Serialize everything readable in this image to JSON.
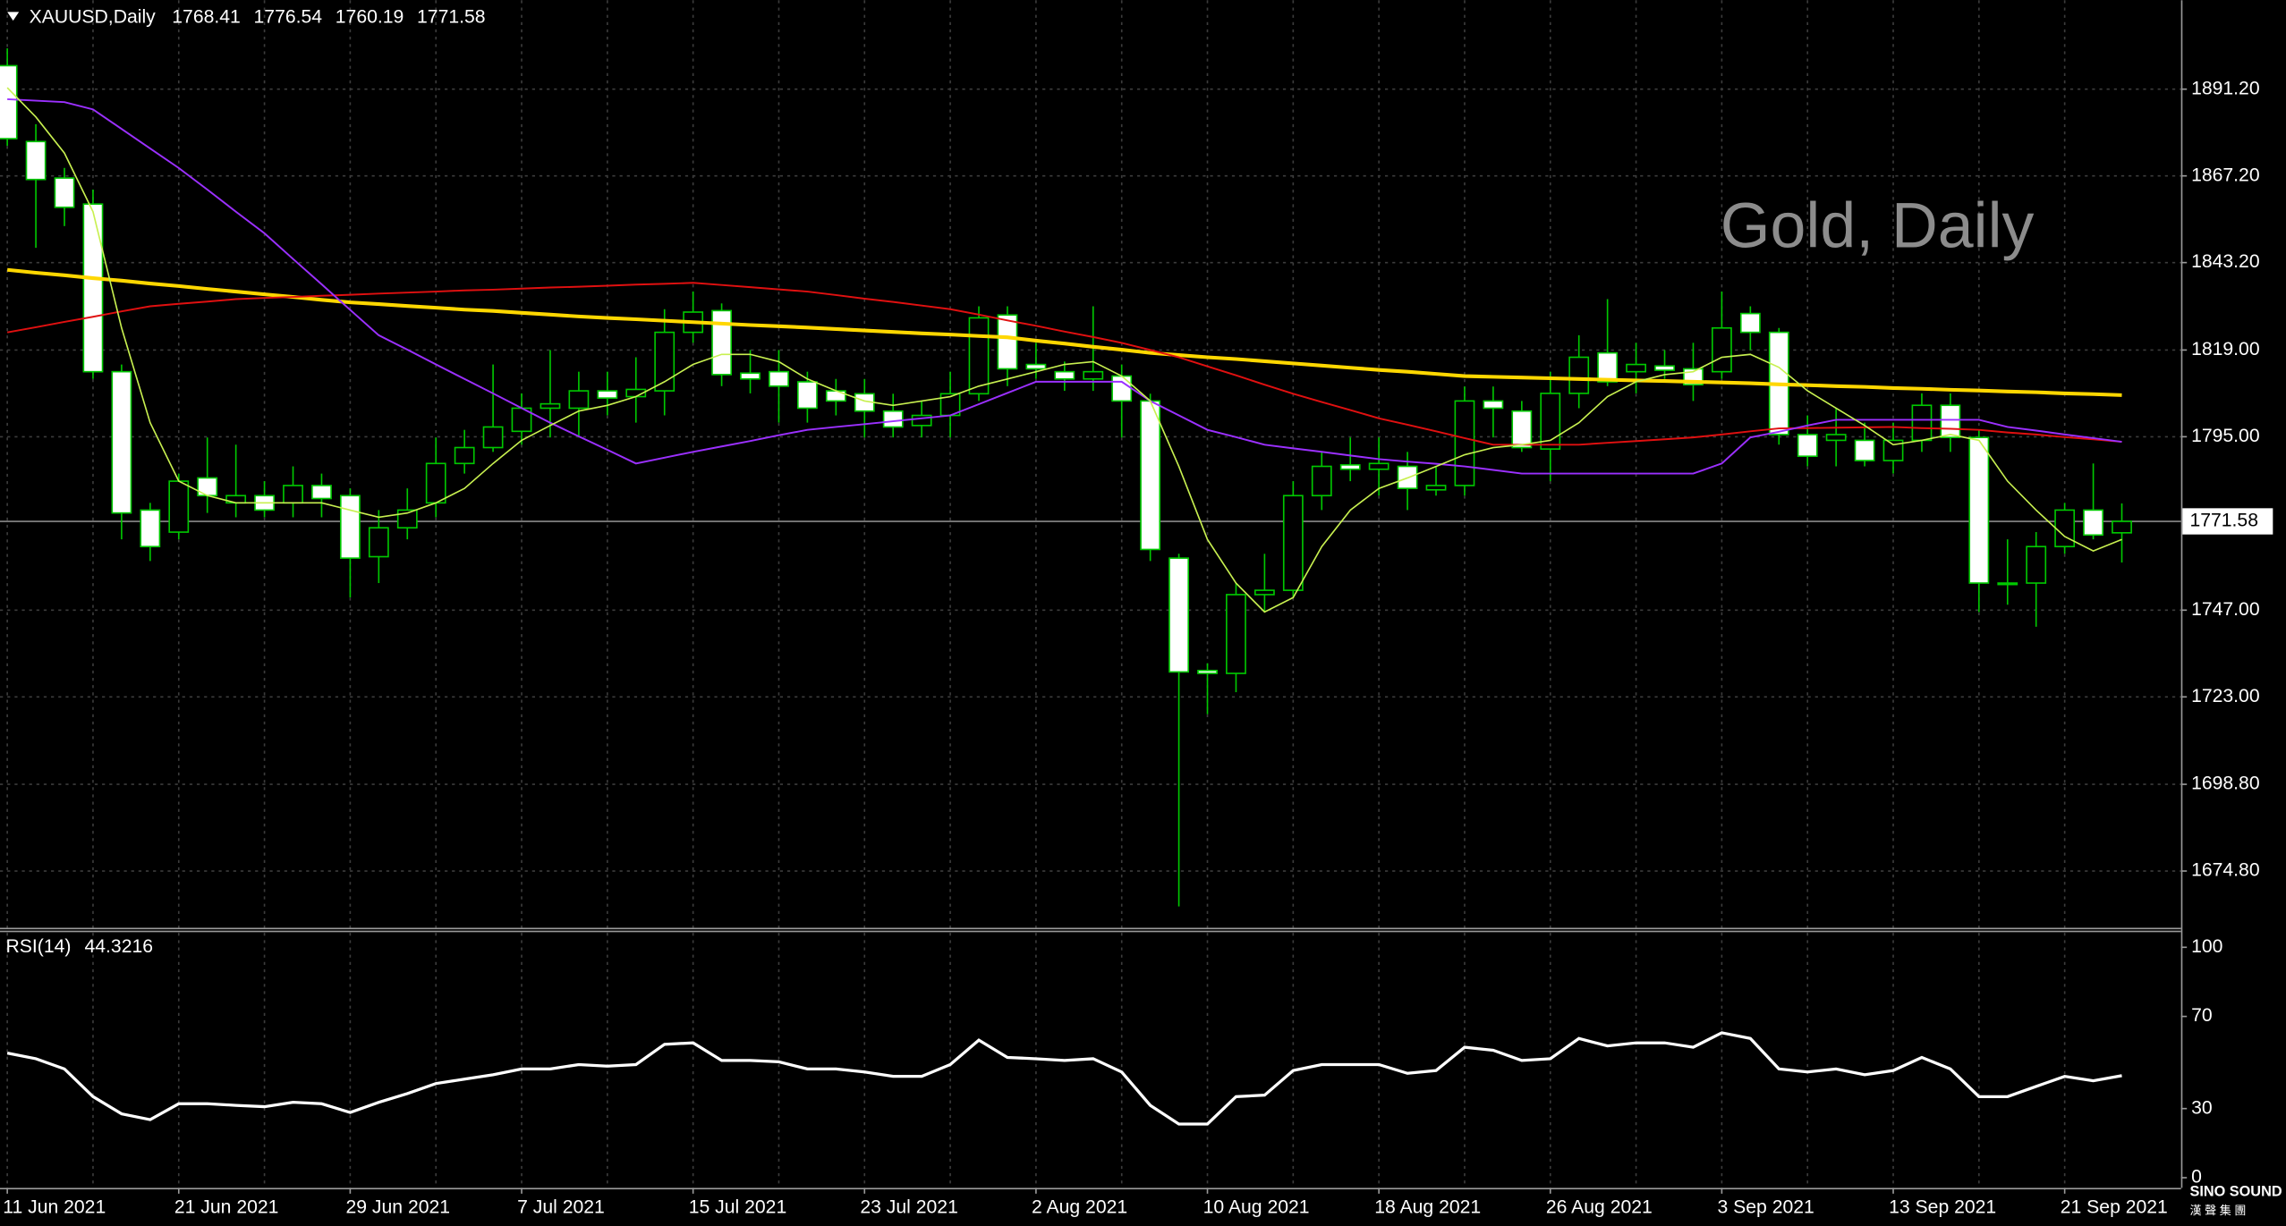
{
  "chart_data": [
    {
      "type": "candlestick",
      "title": "XAUUSD,Daily",
      "annotation": "Gold, Daily",
      "x": [
        "11 Jun 2021",
        null,
        null,
        null,
        null,
        null,
        "21 Jun 2021",
        null,
        null,
        null,
        null,
        null,
        "29 Jun 2021",
        null,
        null,
        null,
        null,
        null,
        "7 Jul 2021",
        null,
        null,
        null,
        null,
        null,
        "15 Jul 2021",
        null,
        null,
        null,
        null,
        null,
        "23 Jul 2021",
        null,
        null,
        null,
        null,
        null,
        "2 Aug 2021",
        null,
        null,
        null,
        null,
        null,
        "10 Aug 2021",
        null,
        null,
        null,
        null,
        null,
        "18 Aug 2021",
        null,
        null,
        null,
        null,
        null,
        "26 Aug 2021",
        null,
        null,
        null,
        null,
        null,
        "3 Sep 2021",
        null,
        null,
        null,
        null,
        null,
        "13 Sep 2021",
        null,
        null,
        null,
        null,
        null,
        "21 Sep 2021",
        null,
        null
      ],
      "open": [
        1897.7,
        1876.7,
        1866.6,
        1859.4,
        1813.0,
        1774.7,
        1768.6,
        1783.6,
        1776.7,
        1778.7,
        1776.7,
        1781.5,
        1778.7,
        1761.8,
        1769.8,
        1776.7,
        1787.6,
        1792.0,
        1796.5,
        1802.9,
        1802.9,
        1807.7,
        1806.1,
        1807.7,
        1823.9,
        1829.9,
        1812.6,
        1813.0,
        1810.2,
        1807.7,
        1806.9,
        1802.1,
        1798.1,
        1800.9,
        1806.9,
        1828.7,
        1815.0,
        1813.0,
        1811.0,
        1811.8,
        1804.9,
        1761.4,
        1730.3,
        1729.5,
        1751.3,
        1752.5,
        1778.7,
        1787.2,
        1786.0,
        1786.8,
        1780.3,
        1781.5,
        1804.9,
        1802.1,
        1791.6,
        1807.0,
        1818.2,
        1813.0,
        1814.6,
        1813.8,
        1813.0,
        1829.1,
        1823.9,
        1795.6,
        1794.0,
        1794.0,
        1788.4,
        1794.0,
        1803.7,
        1794.8,
        1754.1,
        1754.5,
        1764.6,
        1774.7,
        1768.41
      ],
      "high": [
        1902.5,
        1881.5,
        1869.4,
        1863.4,
        1815.0,
        1776.7,
        1784.8,
        1794.8,
        1792.8,
        1782.7,
        1786.8,
        1784.8,
        1780.7,
        1774.7,
        1780.7,
        1794.8,
        1796.9,
        1815.0,
        1807.0,
        1819.0,
        1813.0,
        1813.0,
        1817.0,
        1830.3,
        1835.2,
        1831.9,
        1819.0,
        1819.0,
        1813.0,
        1811.0,
        1811.0,
        1806.9,
        1804.9,
        1813.0,
        1831.1,
        1831.1,
        1821.0,
        1815.8,
        1831.1,
        1815.0,
        1806.9,
        1762.6,
        1732.3,
        1754.5,
        1762.6,
        1782.7,
        1790.8,
        1794.8,
        1794.8,
        1790.8,
        1786.8,
        1808.9,
        1808.9,
        1804.9,
        1813.0,
        1823.1,
        1833.1,
        1821.0,
        1819.0,
        1821.0,
        1835.2,
        1831.1,
        1825.1,
        1800.9,
        1802.9,
        1798.9,
        1798.9,
        1807.0,
        1807.0,
        1796.9,
        1766.6,
        1768.6,
        1776.7,
        1787.6,
        1776.54
      ],
      "low": [
        1875.5,
        1847.3,
        1853.3,
        1811.0,
        1766.6,
        1760.6,
        1766.6,
        1773.9,
        1772.7,
        1772.7,
        1772.7,
        1772.7,
        1750.5,
        1754.5,
        1766.6,
        1772.7,
        1784.8,
        1790.8,
        1792.8,
        1794.8,
        1794.8,
        1800.9,
        1798.9,
        1800.9,
        1821.0,
        1809.0,
        1807.0,
        1798.9,
        1798.9,
        1800.9,
        1794.8,
        1794.8,
        1794.8,
        1794.8,
        1804.9,
        1809.0,
        1811.0,
        1807.7,
        1807.7,
        1794.8,
        1760.6,
        1665.0,
        1718.2,
        1724.3,
        1746.5,
        1750.5,
        1774.7,
        1782.7,
        1778.7,
        1774.7,
        1778.7,
        1778.7,
        1794.8,
        1790.8,
        1782.7,
        1802.9,
        1809.0,
        1807.0,
        1811.0,
        1804.9,
        1811.0,
        1819.0,
        1792.8,
        1786.8,
        1786.8,
        1786.8,
        1784.8,
        1790.8,
        1790.8,
        1746.5,
        1748.5,
        1742.4,
        1762.6,
        1766.6,
        1760.19
      ],
      "close": [
        1877.5,
        1866.2,
        1858.5,
        1813.0,
        1773.9,
        1764.6,
        1782.7,
        1778.7,
        1778.7,
        1774.7,
        1781.5,
        1777.9,
        1761.4,
        1769.8,
        1774.7,
        1787.6,
        1792.0,
        1797.7,
        1802.9,
        1804.1,
        1807.7,
        1805.7,
        1808.1,
        1823.9,
        1829.5,
        1812.2,
        1811.0,
        1809.0,
        1802.9,
        1804.9,
        1802.1,
        1797.7,
        1800.9,
        1806.9,
        1827.9,
        1813.8,
        1813.8,
        1811.0,
        1813.0,
        1804.9,
        1763.8,
        1729.9,
        1729.5,
        1751.3,
        1752.5,
        1778.7,
        1786.8,
        1786.0,
        1787.6,
        1780.7,
        1781.5,
        1804.9,
        1802.9,
        1792.0,
        1807.0,
        1817.0,
        1810.2,
        1815.0,
        1813.4,
        1809.4,
        1825.1,
        1823.9,
        1795.6,
        1789.6,
        1795.6,
        1788.4,
        1794.0,
        1803.7,
        1794.8,
        1754.5,
        1754.5,
        1764.6,
        1774.7,
        1767.8,
        1771.58
      ],
      "bull_color": "#000000",
      "bear_color": "#ffffff",
      "wick_color": "#00c800",
      "series": [
        {
          "color": "#ffd700",
          "width": 2.5,
          "values": [
            1841.2,
            1840.4,
            1839.7,
            1838.9,
            1838.2,
            1837.4,
            1836.7,
            1835.9,
            1835.2,
            1834.4,
            1833.7,
            1832.9,
            1832.2,
            1831.7,
            1831.2,
            1830.7,
            1830.2,
            1829.8,
            1829.3,
            1828.8,
            1828.3,
            1827.9,
            1827.5,
            1827.1,
            1826.7,
            1826.3,
            1825.9,
            1825.6,
            1825.2,
            1824.8,
            1824.4,
            1824.0,
            1823.6,
            1823.3,
            1822.9,
            1822.5,
            1821.6,
            1820.8,
            1819.9,
            1819.1,
            1818.2,
            1817.6,
            1817.0,
            1816.5,
            1815.9,
            1815.3,
            1814.7,
            1814.1,
            1813.5,
            1813.0,
            1812.4,
            1811.8,
            1811.6,
            1811.4,
            1811.2,
            1811.0,
            1810.8,
            1810.6,
            1810.4,
            1810.2,
            1810.0,
            1809.8,
            1809.5,
            1809.3,
            1809.0,
            1808.8,
            1808.5,
            1808.3,
            1808.0,
            1807.8,
            1807.5,
            1807.3,
            1807.0,
            1806.8,
            1806.5
          ]
        },
        {
          "color": "#e01010",
          "width": 1.2,
          "values": [
            1823.9,
            1825.3,
            1826.8,
            1828.2,
            1829.7,
            1831.1,
            1831.8,
            1832.4,
            1833.1,
            1833.4,
            1833.7,
            1834.0,
            1834.3,
            1834.6,
            1834.9,
            1835.2,
            1835.5,
            1835.7,
            1836.0,
            1836.3,
            1836.5,
            1836.8,
            1837.1,
            1837.3,
            1837.6,
            1837.0,
            1836.4,
            1835.8,
            1835.2,
            1834.2,
            1833.2,
            1832.3,
            1831.3,
            1830.3,
            1828.8,
            1827.2,
            1825.7,
            1824.1,
            1822.6,
            1821.0,
            1819.0,
            1817.0,
            1814.5,
            1812.0,
            1809.4,
            1806.9,
            1804.6,
            1802.4,
            1800.1,
            1798.3,
            1796.5,
            1794.6,
            1792.8,
            1792.8,
            1792.8,
            1792.8,
            1793.3,
            1793.8,
            1794.3,
            1794.8,
            1795.6,
            1796.5,
            1797.3,
            1797.4,
            1797.5,
            1797.6,
            1797.7,
            1797.4,
            1797.2,
            1796.9,
            1796.2,
            1795.6,
            1794.9,
            1794.3,
            1793.6
          ]
        },
        {
          "color": "#9b30ff",
          "width": 1.2,
          "values": [
            1888.4,
            1888.0,
            1887.6,
            1885.6,
            1880.2,
            1874.8,
            1869.4,
            1863.4,
            1857.3,
            1851.3,
            1844.2,
            1837.2,
            1830.1,
            1823.1,
            1819.1,
            1815.0,
            1811.0,
            1807.0,
            1802.9,
            1798.9,
            1795.1,
            1791.4,
            1787.6,
            1789.2,
            1790.8,
            1792.3,
            1793.8,
            1795.4,
            1796.9,
            1797.7,
            1798.5,
            1799.3,
            1800.1,
            1800.9,
            1804.0,
            1807.1,
            1810.2,
            1810.2,
            1810.2,
            1810.2,
            1804.9,
            1800.9,
            1796.9,
            1794.9,
            1792.8,
            1791.8,
            1790.8,
            1789.8,
            1788.8,
            1788.1,
            1787.5,
            1786.8,
            1785.8,
            1784.8,
            1784.8,
            1784.8,
            1784.8,
            1784.8,
            1784.8,
            1784.8,
            1787.6,
            1794.8,
            1796.4,
            1798.1,
            1799.7,
            1799.7,
            1799.7,
            1799.7,
            1799.7,
            1799.7,
            1797.7,
            1796.7,
            1795.6,
            1794.6,
            1793.6
          ]
        },
        {
          "color": "#c8f050",
          "width": 1,
          "values": [
            1891.6,
            1883.5,
            1873.5,
            1857.3,
            1825.1,
            1798.9,
            1782.7,
            1778.7,
            1776.7,
            1776.7,
            1776.7,
            1776.7,
            1774.7,
            1772.7,
            1773.9,
            1776.7,
            1780.7,
            1787.6,
            1794.0,
            1798.1,
            1802.1,
            1803.7,
            1806.1,
            1810.2,
            1815.0,
            1817.8,
            1817.8,
            1815.8,
            1811.0,
            1807.7,
            1804.9,
            1803.7,
            1804.9,
            1806.1,
            1809.0,
            1811.0,
            1813.0,
            1815.0,
            1815.8,
            1811.8,
            1804.9,
            1786.8,
            1766.6,
            1754.5,
            1746.5,
            1750.5,
            1764.6,
            1774.7,
            1780.7,
            1783.6,
            1786.8,
            1790.0,
            1792.0,
            1792.8,
            1794.0,
            1798.9,
            1806.1,
            1810.2,
            1812.2,
            1813.0,
            1817.0,
            1817.8,
            1814.2,
            1807.7,
            1802.9,
            1798.1,
            1792.8,
            1794.0,
            1795.6,
            1794.0,
            1782.7,
            1774.7,
            1767.4,
            1763.4,
            1766.6
          ]
        }
      ],
      "ylim": [
        1658.9,
        1915.8
      ],
      "yticks": [
        {
          "value": 1891.2,
          "label": "1891.20"
        },
        {
          "value": 1867.2,
          "label": "1867.20"
        },
        {
          "value": 1843.2,
          "label": "1843.20"
        },
        {
          "value": 1819,
          "label": "1819.00"
        },
        {
          "value": 1795,
          "label": "1795.00"
        },
        {
          "value": 1747,
          "label": "1747.00"
        },
        {
          "value": 1723,
          "label": "1723.00"
        },
        {
          "value": 1698.8,
          "label": "1698.80"
        },
        {
          "value": 1674.8,
          "label": "1674.80"
        }
      ],
      "grid": true
    },
    {
      "type": "line",
      "title": "RSI(14)",
      "color": "#ffffff",
      "values": [
        54.1,
        51.6,
        47.2,
        35.2,
        27.7,
        25.2,
        32.1,
        32.1,
        31.4,
        30.8,
        32.7,
        32.1,
        28.3,
        32.7,
        36.5,
        40.9,
        42.8,
        44.7,
        47.2,
        47.2,
        49.1,
        48.4,
        49.1,
        57.9,
        58.5,
        50.9,
        50.9,
        50.3,
        47.2,
        47.2,
        45.9,
        44.0,
        44.0,
        49.1,
        59.7,
        52.2,
        51.6,
        50.9,
        51.6,
        45.9,
        31.4,
        23.3,
        23.3,
        35.2,
        35.8,
        46.5,
        49.1,
        49.1,
        49.1,
        45.3,
        46.5,
        56.6,
        55.3,
        50.9,
        51.6,
        60.4,
        57.2,
        58.5,
        58.5,
        56.6,
        62.9,
        60.4,
        47.2,
        45.9,
        47.2,
        44.7,
        46.5,
        52.2,
        47.2,
        35.2,
        35.2,
        39.6,
        44.0,
        42.1,
        44.3216
      ],
      "ylim": [
        -4.4,
        106.9
      ],
      "yticks": [
        0,
        30,
        70,
        100
      ]
    }
  ],
  "logo": {
    "name": "SINO SOUND",
    "subtitle": "漢 聲 集 團"
  }
}
